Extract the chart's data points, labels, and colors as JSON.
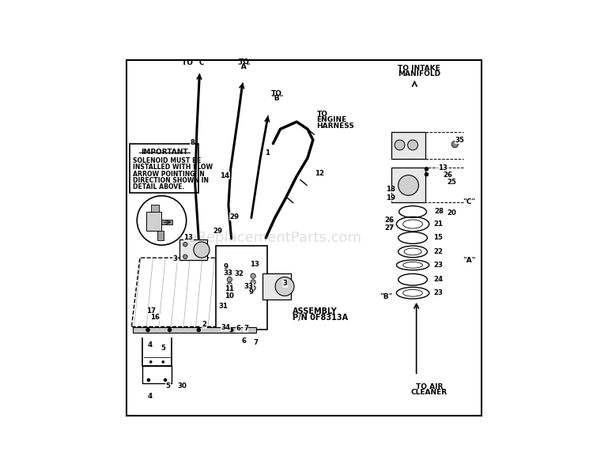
{
  "bg_color": "#ffffff",
  "watermark": "eReplacementParts.com",
  "important_text": [
    "IMPORTANT",
    "SOLENOID MUST BE",
    "INSTALLED WITH FLOW",
    "ARROW POINTING IN",
    "DIRECTION SHOWN IN",
    "DETAIL ABOVE."
  ],
  "assembly_label": [
    "ASSEMBLY",
    "P/N 0F8313A"
  ],
  "line_color": "#000000",
  "text_color": "#000000"
}
